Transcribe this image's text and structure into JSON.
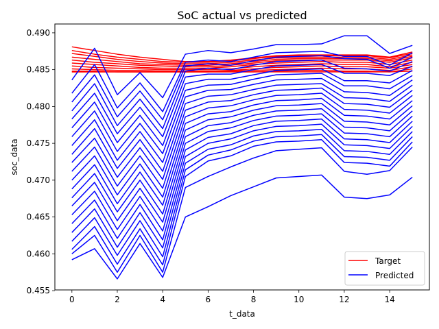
{
  "chart_data": {
    "type": "line",
    "title": "SoC actual vs predicted",
    "xlabel": "t_data",
    "ylabel": "soc_data",
    "xlim": [
      -0.75,
      15.75
    ],
    "ylim": [
      0.4551,
      0.4912
    ],
    "xticks": [
      0,
      2,
      4,
      6,
      8,
      10,
      12,
      14
    ],
    "yticks": [
      0.455,
      0.46,
      0.465,
      0.47,
      0.475,
      0.48,
      0.485,
      0.49
    ],
    "ytick_labels": [
      "0.455",
      "0.460",
      "0.465",
      "0.470",
      "0.475",
      "0.480",
      "0.485",
      "0.490"
    ],
    "grid": false,
    "legend_position": "lower-right",
    "legend": [
      {
        "label": "Target",
        "color": "#ff0000"
      },
      {
        "label": "Predicted",
        "color": "#0000ff"
      }
    ],
    "x": [
      0,
      1,
      2,
      3,
      4,
      5,
      6,
      7,
      8,
      9,
      10,
      11,
      12,
      13,
      14,
      15
    ],
    "series": [
      {
        "group": "Target",
        "color": "#ff0000",
        "values": [
          0.4881,
          0.4876,
          0.4871,
          0.4867,
          0.4864,
          0.4861,
          0.4861,
          0.4863,
          0.4866,
          0.4869,
          0.487,
          0.487,
          0.487,
          0.487,
          0.4867,
          0.4874
        ]
      },
      {
        "group": "Target",
        "color": "#ff0000",
        "values": [
          0.4876,
          0.4871,
          0.4867,
          0.4864,
          0.4861,
          0.486,
          0.486,
          0.4862,
          0.4865,
          0.4868,
          0.4869,
          0.4869,
          0.4869,
          0.4869,
          0.4866,
          0.4872
        ]
      },
      {
        "group": "Target",
        "color": "#ff0000",
        "values": [
          0.4872,
          0.4868,
          0.4864,
          0.4861,
          0.4859,
          0.4858,
          0.4858,
          0.486,
          0.4863,
          0.4866,
          0.4867,
          0.4867,
          0.4867,
          0.4867,
          0.4864,
          0.487
        ]
      },
      {
        "group": "Target",
        "color": "#ff0000",
        "values": [
          0.4867,
          0.4864,
          0.4861,
          0.4858,
          0.4857,
          0.4856,
          0.4856,
          0.4858,
          0.4861,
          0.4864,
          0.4865,
          0.4865,
          0.4865,
          0.4865,
          0.4862,
          0.4868
        ]
      },
      {
        "group": "Target",
        "color": "#ff0000",
        "values": [
          0.4863,
          0.486,
          0.4858,
          0.4856,
          0.4855,
          0.4854,
          0.4854,
          0.4856,
          0.4859,
          0.4862,
          0.4863,
          0.4863,
          0.4863,
          0.4863,
          0.486,
          0.4866
        ]
      },
      {
        "group": "Target",
        "color": "#ff0000",
        "values": [
          0.4859,
          0.4857,
          0.4855,
          0.4853,
          0.4852,
          0.4852,
          0.4852,
          0.4854,
          0.4857,
          0.4859,
          0.486,
          0.4861,
          0.486,
          0.486,
          0.4857,
          0.4863
        ]
      },
      {
        "group": "Target",
        "color": "#ff0000",
        "values": [
          0.4855,
          0.4853,
          0.4852,
          0.4851,
          0.485,
          0.485,
          0.485,
          0.4851,
          0.4854,
          0.4856,
          0.4857,
          0.4858,
          0.4857,
          0.4857,
          0.4854,
          0.486
        ]
      },
      {
        "group": "Target",
        "color": "#ff0000",
        "values": [
          0.4851,
          0.485,
          0.4849,
          0.4849,
          0.4848,
          0.4848,
          0.4848,
          0.4849,
          0.4851,
          0.4853,
          0.4854,
          0.4855,
          0.4854,
          0.4854,
          0.4852,
          0.4857
        ]
      },
      {
        "group": "Target",
        "color": "#ff0000",
        "values": [
          0.4848,
          0.4848,
          0.4847,
          0.4847,
          0.4847,
          0.4847,
          0.4847,
          0.4848,
          0.4849,
          0.485,
          0.4851,
          0.4852,
          0.4851,
          0.4851,
          0.4849,
          0.4854
        ]
      },
      {
        "group": "Target",
        "color": "#ff0000",
        "values": [
          0.4847,
          0.4847,
          0.4847,
          0.4847,
          0.4847,
          0.4847,
          0.4847,
          0.4847,
          0.4847,
          0.4848,
          0.4849,
          0.4849,
          0.4848,
          0.4848,
          0.4847,
          0.4851
        ]
      },
      {
        "group": "Target",
        "color": "#ff0000",
        "values": [
          0.4847,
          0.4847,
          0.4847,
          0.4847,
          0.4847,
          0.4847,
          0.4847,
          0.4847,
          0.4847,
          0.4847,
          0.4847,
          0.4847,
          0.4847,
          0.4847,
          0.4847,
          0.4848
        ]
      },
      {
        "group": "Predicted",
        "color": "#0000ff",
        "values": [
          0.4836,
          0.4879,
          0.4816,
          0.4846,
          0.4812,
          0.4871,
          0.4876,
          0.4873,
          0.4878,
          0.4884,
          0.4884,
          0.4885,
          0.4896,
          0.4896,
          0.4872,
          0.4883
        ]
      },
      {
        "group": "Predicted",
        "color": "#0000ff",
        "values": [
          0.4818,
          0.4857,
          0.4798,
          0.4832,
          0.4793,
          0.486,
          0.4863,
          0.4861,
          0.4867,
          0.4873,
          0.4874,
          0.4875,
          0.4868,
          0.4868,
          0.4856,
          0.4873
        ]
      },
      {
        "group": "Predicted",
        "color": "#0000ff",
        "values": [
          0.4806,
          0.4843,
          0.4786,
          0.4821,
          0.4782,
          0.4855,
          0.4858,
          0.4856,
          0.4862,
          0.4867,
          0.4868,
          0.4869,
          0.4865,
          0.4864,
          0.4852,
          0.4867
        ]
      },
      {
        "group": "Predicted",
        "color": "#0000ff",
        "values": [
          0.4794,
          0.4831,
          0.4774,
          0.481,
          0.477,
          0.4848,
          0.4852,
          0.485,
          0.4856,
          0.4861,
          0.4862,
          0.4863,
          0.4852,
          0.4851,
          0.4848,
          0.4861
        ]
      },
      {
        "group": "Predicted",
        "color": "#0000ff",
        "values": [
          0.4783,
          0.4818,
          0.4763,
          0.4799,
          0.4759,
          0.484,
          0.4844,
          0.4844,
          0.485,
          0.4855,
          0.4856,
          0.4857,
          0.4845,
          0.4845,
          0.4842,
          0.4855
        ]
      },
      {
        "group": "Predicted",
        "color": "#0000ff",
        "values": [
          0.4771,
          0.4806,
          0.4751,
          0.4788,
          0.4747,
          0.4831,
          0.4837,
          0.4837,
          0.4843,
          0.4849,
          0.485,
          0.4851,
          0.4835,
          0.4835,
          0.4832,
          0.4849
        ]
      },
      {
        "group": "Predicted",
        "color": "#0000ff",
        "values": [
          0.4759,
          0.4794,
          0.4739,
          0.4777,
          0.4736,
          0.4822,
          0.4829,
          0.483,
          0.4837,
          0.4843,
          0.4844,
          0.4845,
          0.4828,
          0.4828,
          0.4824,
          0.4842
        ]
      },
      {
        "group": "Predicted",
        "color": "#0000ff",
        "values": [
          0.4747,
          0.4782,
          0.4727,
          0.4766,
          0.4724,
          0.4813,
          0.4822,
          0.4823,
          0.483,
          0.4836,
          0.4837,
          0.4838,
          0.482,
          0.4819,
          0.4815,
          0.4836
        ]
      },
      {
        "group": "Predicted",
        "color": "#0000ff",
        "values": [
          0.4735,
          0.477,
          0.4716,
          0.4755,
          0.4712,
          0.4804,
          0.4814,
          0.4816,
          0.4823,
          0.4829,
          0.483,
          0.4831,
          0.4812,
          0.4811,
          0.4807,
          0.4829
        ]
      },
      {
        "group": "Predicted",
        "color": "#0000ff",
        "values": [
          0.4724,
          0.4757,
          0.4704,
          0.4744,
          0.4701,
          0.4795,
          0.4806,
          0.4808,
          0.4816,
          0.4822,
          0.4823,
          0.4825,
          0.4804,
          0.4803,
          0.4799,
          0.4822
        ]
      },
      {
        "group": "Predicted",
        "color": "#0000ff",
        "values": [
          0.4712,
          0.4745,
          0.4692,
          0.4733,
          0.4689,
          0.4786,
          0.4798,
          0.4801,
          0.4809,
          0.4815,
          0.4816,
          0.4818,
          0.4796,
          0.4795,
          0.4791,
          0.4815
        ]
      },
      {
        "group": "Predicted",
        "color": "#0000ff",
        "values": [
          0.47,
          0.4733,
          0.468,
          0.4722,
          0.4677,
          0.4777,
          0.479,
          0.4793,
          0.4802,
          0.4808,
          0.4809,
          0.4811,
          0.4788,
          0.4787,
          0.4783,
          0.4808
        ]
      },
      {
        "group": "Predicted",
        "color": "#0000ff",
        "values": [
          0.4688,
          0.4721,
          0.4668,
          0.4711,
          0.4666,
          0.4768,
          0.4782,
          0.4786,
          0.4795,
          0.4801,
          0.4802,
          0.4804,
          0.478,
          0.4779,
          0.4775,
          0.4801
        ]
      },
      {
        "group": "Predicted",
        "color": "#0000ff",
        "values": [
          0.4676,
          0.4709,
          0.4657,
          0.47,
          0.4654,
          0.4759,
          0.4774,
          0.4778,
          0.4788,
          0.4794,
          0.4795,
          0.4797,
          0.4772,
          0.4771,
          0.4767,
          0.4794
        ]
      },
      {
        "group": "Predicted",
        "color": "#0000ff",
        "values": [
          0.4665,
          0.4697,
          0.4645,
          0.4689,
          0.4643,
          0.475,
          0.4766,
          0.4771,
          0.4781,
          0.4787,
          0.4788,
          0.479,
          0.4764,
          0.4763,
          0.4759,
          0.4787
        ]
      },
      {
        "group": "Predicted",
        "color": "#0000ff",
        "values": [
          0.4653,
          0.4685,
          0.4633,
          0.4678,
          0.4631,
          0.4741,
          0.4758,
          0.4763,
          0.4774,
          0.478,
          0.4781,
          0.4783,
          0.4756,
          0.4755,
          0.4751,
          0.478
        ]
      },
      {
        "group": "Predicted",
        "color": "#0000ff",
        "values": [
          0.4641,
          0.4673,
          0.4621,
          0.4667,
          0.4619,
          0.4732,
          0.475,
          0.4756,
          0.4767,
          0.4773,
          0.4774,
          0.4776,
          0.4748,
          0.4747,
          0.4743,
          0.4773
        ]
      },
      {
        "group": "Predicted",
        "color": "#0000ff",
        "values": [
          0.4629,
          0.4661,
          0.4609,
          0.4656,
          0.4608,
          0.4723,
          0.4742,
          0.4748,
          0.476,
          0.4766,
          0.4767,
          0.4769,
          0.474,
          0.4739,
          0.4735,
          0.4766
        ]
      },
      {
        "group": "Predicted",
        "color": "#0000ff",
        "values": [
          0.4617,
          0.4649,
          0.4598,
          0.4645,
          0.4596,
          0.4714,
          0.4734,
          0.4741,
          0.4753,
          0.4759,
          0.476,
          0.4762,
          0.4732,
          0.4731,
          0.4727,
          0.4759
        ]
      },
      {
        "group": "Predicted",
        "color": "#0000ff",
        "values": [
          0.4606,
          0.4637,
          0.4586,
          0.4634,
          0.4585,
          0.4705,
          0.4726,
          0.4733,
          0.4746,
          0.4752,
          0.4753,
          0.4755,
          0.4724,
          0.4723,
          0.4719,
          0.4752
        ]
      },
      {
        "group": "Predicted",
        "color": "#0000ff",
        "values": [
          0.46,
          0.4625,
          0.4575,
          0.4625,
          0.4575,
          0.469,
          0.4705,
          0.4718,
          0.473,
          0.474,
          0.4742,
          0.4744,
          0.4712,
          0.4708,
          0.4713,
          0.4745
        ]
      },
      {
        "group": "Predicted",
        "color": "#0000ff",
        "values": [
          0.4592,
          0.4607,
          0.4566,
          0.4614,
          0.4568,
          0.465,
          0.4664,
          0.4679,
          0.4691,
          0.4703,
          0.4705,
          0.4707,
          0.4677,
          0.4675,
          0.468,
          0.4704
        ]
      }
    ]
  }
}
